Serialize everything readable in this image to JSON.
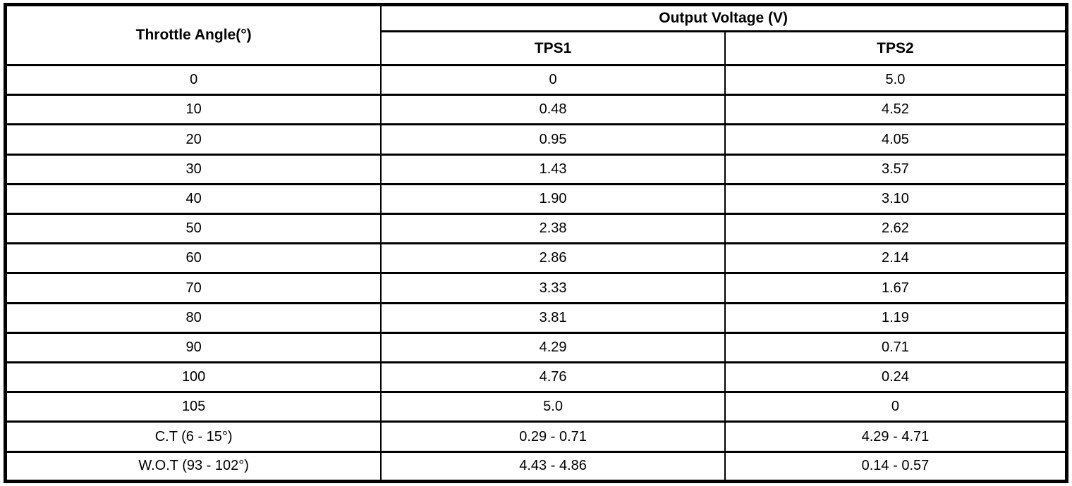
{
  "table": {
    "columns": {
      "angle_header": "Throttle Angle(°)",
      "voltage_group_header": "Output Voltage (V)",
      "tps1_header": "TPS1",
      "tps2_header": "TPS2"
    },
    "rows": [
      {
        "angle": "0",
        "tps1": "0",
        "tps2": "5.0"
      },
      {
        "angle": "10",
        "tps1": "0.48",
        "tps2": "4.52"
      },
      {
        "angle": "20",
        "tps1": "0.95",
        "tps2": "4.05"
      },
      {
        "angle": "30",
        "tps1": "1.43",
        "tps2": "3.57"
      },
      {
        "angle": "40",
        "tps1": "1.90",
        "tps2": "3.10"
      },
      {
        "angle": "50",
        "tps1": "2.38",
        "tps2": "2.62"
      },
      {
        "angle": "60",
        "tps1": "2.86",
        "tps2": "2.14"
      },
      {
        "angle": "70",
        "tps1": "3.33",
        "tps2": "1.67"
      },
      {
        "angle": "80",
        "tps1": "3.81",
        "tps2": "1.19"
      },
      {
        "angle": "90",
        "tps1": "4.29",
        "tps2": "0.71"
      },
      {
        "angle": "100",
        "tps1": "4.76",
        "tps2": "0.24"
      },
      {
        "angle": "105",
        "tps1": "5.0",
        "tps2": "0"
      },
      {
        "angle": "C.T (6 - 15°)",
        "tps1": "0.29 - 0.71",
        "tps2": "4.29 - 4.71"
      },
      {
        "angle": "W.O.T (93 - 102°)",
        "tps1": "4.43 - 4.86",
        "tps2": "0.14 - 0.57"
      }
    ],
    "colors": {
      "border": "#000000",
      "text": "#000000",
      "background": "#ffffff"
    }
  }
}
